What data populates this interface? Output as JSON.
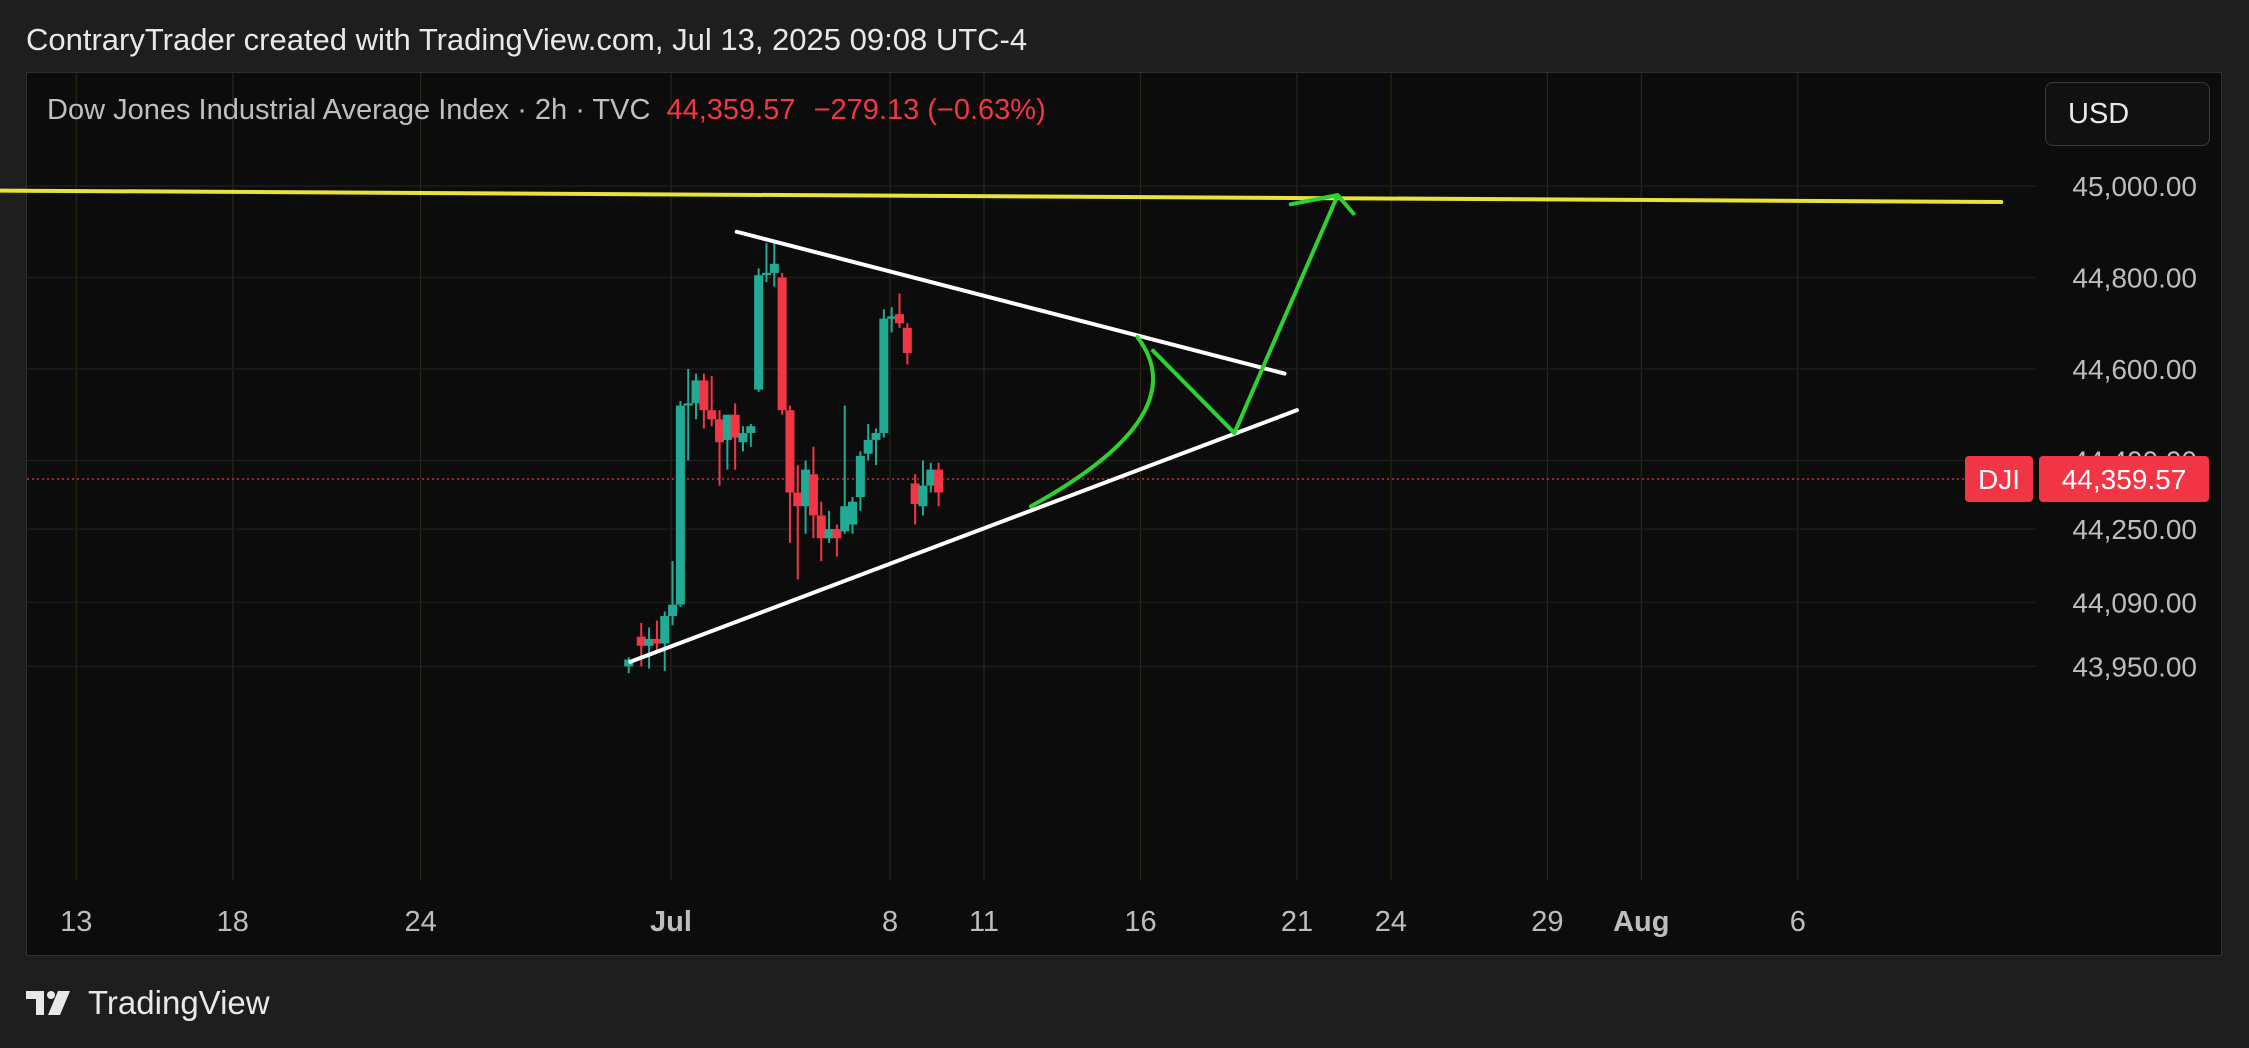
{
  "header": {
    "attribution": "ContraryTrader created with TradingView.com, Jul 13, 2025 09:08 UTC-4"
  },
  "legend": {
    "title": "Dow Jones Industrial Average Index · 2h · TVC",
    "price": "44,359.57",
    "change": "−279.13 (−0.63%)"
  },
  "currency_button": "USD",
  "footer": {
    "brand": "TradingView"
  },
  "colors": {
    "background": "#0c0c0c",
    "up": "#22ab94",
    "down": "#f23645",
    "resistance": "#e8e23a",
    "trendline": "#ffffff",
    "projection": "#2fd12f"
  },
  "chart_data": {
    "type": "candlestick",
    "symbol": "DJI",
    "last_price": 44359.57,
    "last_price_label": "44,359.57",
    "symbol_label": "DJI",
    "y_ticks": [
      {
        "value": 45000,
        "label": "45,000.00"
      },
      {
        "value": 44800,
        "label": "44,800.00"
      },
      {
        "value": 44600,
        "label": "44,600.00"
      },
      {
        "value": 44400,
        "label": "44,400.00"
      },
      {
        "value": 44250,
        "label": "44,250.00"
      },
      {
        "value": 44090,
        "label": "44,090.00"
      },
      {
        "value": 43950,
        "label": "43,950.00"
      }
    ],
    "x_ticks": [
      {
        "label": "13",
        "day": -18,
        "bold": false
      },
      {
        "label": "18",
        "day": -13,
        "bold": false
      },
      {
        "label": "24",
        "day": -7,
        "bold": false
      },
      {
        "label": "Jul",
        "day": 1,
        "bold": true
      },
      {
        "label": "8",
        "day": 8,
        "bold": false
      },
      {
        "label": "11",
        "day": 11,
        "bold": false
      },
      {
        "label": "16",
        "day": 16,
        "bold": false
      },
      {
        "label": "21",
        "day": 21,
        "bold": false
      },
      {
        "label": "24",
        "day": 24,
        "bold": false
      },
      {
        "label": "29",
        "day": 29,
        "bold": false
      },
      {
        "label": "Aug",
        "day": 32,
        "bold": true
      },
      {
        "label": "6",
        "day": 37,
        "bold": false
      }
    ],
    "candles": [
      {
        "t": -0.35,
        "o": 43950,
        "h": 43970,
        "l": 43935,
        "c": 43965
      },
      {
        "t": 0.05,
        "o": 44015,
        "h": 44045,
        "l": 43950,
        "c": 43995
      },
      {
        "t": 0.3,
        "o": 43995,
        "h": 44035,
        "l": 43945,
        "c": 44010
      },
      {
        "t": 0.55,
        "o": 44010,
        "h": 44050,
        "l": 43985,
        "c": 44000
      },
      {
        "t": 0.8,
        "o": 44000,
        "h": 44070,
        "l": 43940,
        "c": 44060
      },
      {
        "t": 1.05,
        "o": 44060,
        "h": 44180,
        "l": 44040,
        "c": 44085
      },
      {
        "t": 1.3,
        "o": 44085,
        "h": 44530,
        "l": 44080,
        "c": 44520
      },
      {
        "t": 1.55,
        "o": 44520,
        "h": 44600,
        "l": 44400,
        "c": 44525
      },
      {
        "t": 1.8,
        "o": 44525,
        "h": 44590,
        "l": 44490,
        "c": 44575
      },
      {
        "t": 2.05,
        "o": 44575,
        "h": 44590,
        "l": 44470,
        "c": 44510
      },
      {
        "t": 2.3,
        "o": 44510,
        "h": 44585,
        "l": 44475,
        "c": 44490
      },
      {
        "t": 2.55,
        "o": 44490,
        "h": 44510,
        "l": 44345,
        "c": 44440
      },
      {
        "t": 2.8,
        "o": 44445,
        "h": 44495,
        "l": 44380,
        "c": 44500
      },
      {
        "t": 3.05,
        "o": 44500,
        "h": 44525,
        "l": 44380,
        "c": 44450
      },
      {
        "t": 3.3,
        "o": 44440,
        "h": 44475,
        "l": 44420,
        "c": 44460
      },
      {
        "t": 3.55,
        "o": 44460,
        "h": 44480,
        "l": 44430,
        "c": 44475
      },
      {
        "t": 3.8,
        "o": 44555,
        "h": 44820,
        "l": 44550,
        "c": 44805
      },
      {
        "t": 4.05,
        "o": 44805,
        "h": 44875,
        "l": 44790,
        "c": 44810
      },
      {
        "t": 4.3,
        "o": 44810,
        "h": 44880,
        "l": 44780,
        "c": 44830
      },
      {
        "t": 4.55,
        "o": 44800,
        "h": 44810,
        "l": 44500,
        "c": 44510
      },
      {
        "t": 4.8,
        "o": 44510,
        "h": 44520,
        "l": 44220,
        "c": 44330
      },
      {
        "t": 5.05,
        "o": 44330,
        "h": 44390,
        "l": 44140,
        "c": 44300
      },
      {
        "t": 5.3,
        "o": 44300,
        "h": 44400,
        "l": 44240,
        "c": 44380
      },
      {
        "t": 5.55,
        "o": 44370,
        "h": 44430,
        "l": 44230,
        "c": 44280
      },
      {
        "t": 5.8,
        "o": 44280,
        "h": 44310,
        "l": 44180,
        "c": 44230
      },
      {
        "t": 6.05,
        "o": 44230,
        "h": 44290,
        "l": 44220,
        "c": 44250
      },
      {
        "t": 6.3,
        "o": 44250,
        "h": 44260,
        "l": 44190,
        "c": 44230
      },
      {
        "t": 6.55,
        "o": 44245,
        "h": 44520,
        "l": 44240,
        "c": 44300
      },
      {
        "t": 6.8,
        "o": 44260,
        "h": 44320,
        "l": 44240,
        "c": 44310
      },
      {
        "t": 7.05,
        "o": 44320,
        "h": 44420,
        "l": 44290,
        "c": 44410
      },
      {
        "t": 7.3,
        "o": 44415,
        "h": 44480,
        "l": 44400,
        "c": 44445
      },
      {
        "t": 7.55,
        "o": 44445,
        "h": 44470,
        "l": 44390,
        "c": 44460
      },
      {
        "t": 7.8,
        "o": 44460,
        "h": 44730,
        "l": 44450,
        "c": 44710
      },
      {
        "t": 8.05,
        "o": 44710,
        "h": 44735,
        "l": 44680,
        "c": 44715
      },
      {
        "t": 8.3,
        "o": 44720,
        "h": 44765,
        "l": 44690,
        "c": 44700
      },
      {
        "t": 8.55,
        "o": 44690,
        "h": 44700,
        "l": 44610,
        "c": 44635
      },
      {
        "t": 8.8,
        "o": 44350,
        "h": 44370,
        "l": 44260,
        "c": 44305
      },
      {
        "t": 9.05,
        "o": 44300,
        "h": 44400,
        "l": 44280,
        "c": 44345
      },
      {
        "t": 9.3,
        "o": 44345,
        "h": 44395,
        "l": 44330,
        "c": 44380
      },
      {
        "t": 9.55,
        "o": 44380,
        "h": 44395,
        "l": 44300,
        "c": 44330
      }
    ],
    "drawings": {
      "resistance": {
        "start": {
          "day": -20.5,
          "price": 44990
        },
        "end": {
          "day": 43.5,
          "price": 44965
        }
      },
      "upper_trendline": {
        "start": {
          "day": 3.1,
          "price": 44900
        },
        "end": {
          "day": 20.6,
          "price": 44590
        }
      },
      "lower_trendline": {
        "start": {
          "day": -0.3,
          "price": 43960
        },
        "end": {
          "day": 21.0,
          "price": 44510
        }
      },
      "arc": {
        "start": {
          "day": 12.5,
          "price": 44300
        },
        "control": {
          "day": 17.8,
          "price": 44500
        },
        "end": {
          "day": 15.9,
          "price": 44670
        }
      },
      "zigzag": [
        {
          "day": 16.4,
          "price": 44640
        },
        {
          "day": 19.0,
          "price": 44460
        },
        {
          "day": 22.3,
          "price": 44980
        }
      ],
      "arrowhead": [
        {
          "day": 20.8,
          "price": 44960
        },
        {
          "day": 22.3,
          "price": 44980
        },
        {
          "day": 22.8,
          "price": 44940
        }
      ]
    }
  }
}
